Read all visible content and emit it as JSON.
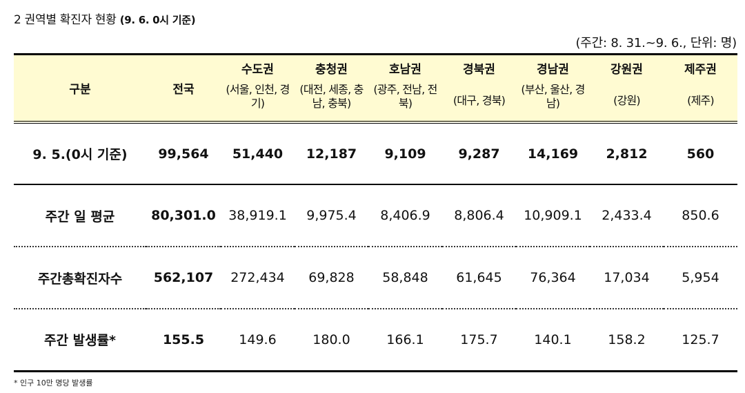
{
  "section": {
    "number": "2",
    "title": "권역별 확진자 현황",
    "date": "(9. 6. 0시 기준)"
  },
  "unit_note": "(주간: 8. 31.~9. 6., 단위: 명)",
  "header": {
    "category": "구분",
    "national": "전국",
    "regions": [
      {
        "name": "수도권",
        "sub": "(서울, 인천, 경기)"
      },
      {
        "name": "충청권",
        "sub": "(대전, 세종, 충남, 충북)"
      },
      {
        "name": "호남권",
        "sub": "(광주, 전남, 전북)"
      },
      {
        "name": "경북권",
        "sub": "(대구, 경북)"
      },
      {
        "name": "경남권",
        "sub": "(부산, 울산, 경남)"
      },
      {
        "name": "강원권",
        "sub": "(강원)"
      },
      {
        "name": "제주권",
        "sub": "(제주)"
      }
    ]
  },
  "rows": [
    {
      "label": "9. 5.(0시 기준)",
      "national": "99,564",
      "values": [
        "51,440",
        "12,187",
        "9,109",
        "9,287",
        "14,169",
        "2,812",
        "560"
      ]
    },
    {
      "label": "주간 일 평균",
      "national": "80,301.0",
      "values": [
        "38,919.1",
        "9,975.4",
        "8,406.9",
        "8,806.4",
        "10,909.1",
        "2,433.4",
        "850.6"
      ]
    },
    {
      "label": "주간총확진자수",
      "national": "562,107",
      "values": [
        "272,434",
        "69,828",
        "58,848",
        "61,645",
        "76,364",
        "17,034",
        "5,954"
      ]
    },
    {
      "label": "주간 발생률*",
      "national": "155.5",
      "values": [
        "149.6",
        "180.0",
        "166.1",
        "175.7",
        "140.1",
        "158.2",
        "125.7"
      ]
    }
  ],
  "footnote": "* 인구 10만 명당 발생률"
}
